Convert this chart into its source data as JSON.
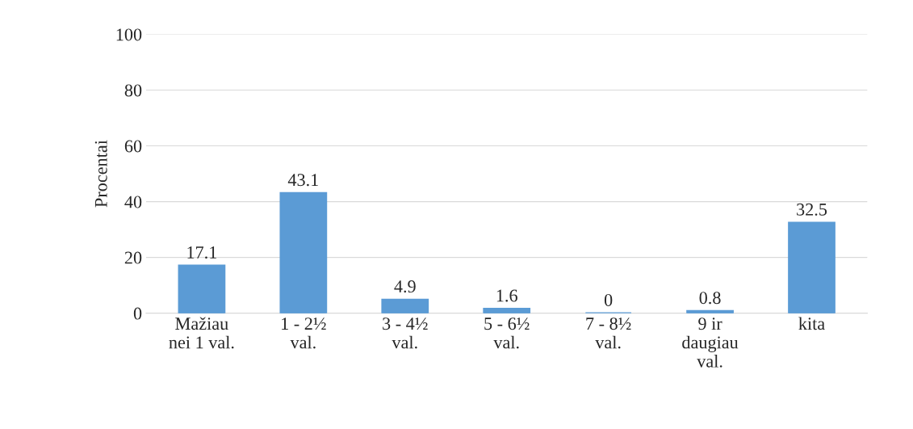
{
  "chart_data": {
    "type": "bar",
    "ylabel": "Procentai",
    "categories": [
      "Mažiau\nnei 1 val.",
      "1 - 2½\nval.",
      "3 - 4½\nval.",
      "5 - 6½\nval.",
      "7 - 8½\nval.",
      "9 ir\ndaugiau\nval.",
      "kita"
    ],
    "values": [
      17.1,
      43.1,
      4.9,
      1.6,
      0,
      0.8,
      32.5
    ],
    "color": "#5b9bd5",
    "ylim": [
      0,
      100
    ],
    "yticks": [
      0,
      20,
      40,
      60,
      80,
      100
    ],
    "grid": "y",
    "data_labels": true
  }
}
